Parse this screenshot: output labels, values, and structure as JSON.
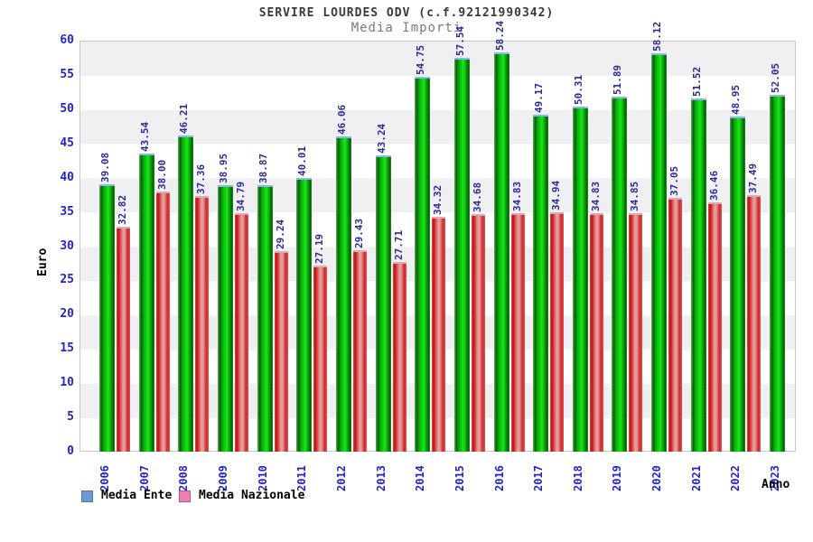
{
  "title": "SERVIRE LOURDES ODV (c.f.92121990342)",
  "subtitle": "Media Importi",
  "chart_data": {
    "type": "bar",
    "categories": [
      "2006",
      "2007",
      "2008",
      "2009",
      "2010",
      "2011",
      "2012",
      "2013",
      "2014",
      "2015",
      "2016",
      "2017",
      "2018",
      "2019",
      "2020",
      "2021",
      "2022",
      "2023"
    ],
    "series": [
      {
        "name": "Media Ente",
        "legend_color": "#6b9bd2",
        "bar_color": "green gradient cylinder with light-blue cap",
        "values": [
          39.08,
          43.54,
          46.21,
          38.95,
          38.87,
          40.01,
          46.06,
          43.24,
          54.75,
          57.54,
          58.24,
          49.17,
          50.31,
          51.89,
          58.12,
          51.52,
          48.95,
          52.05
        ]
      },
      {
        "name": "Media Nazionale",
        "legend_color": "#ee7fae",
        "bar_color": "red-pink gradient cylinder with pink cap",
        "values": [
          32.82,
          38.0,
          37.36,
          34.79,
          29.24,
          27.19,
          29.43,
          27.71,
          34.32,
          34.68,
          34.83,
          34.94,
          34.83,
          34.85,
          37.05,
          36.46,
          37.49,
          null
        ]
      }
    ],
    "xlabel": "Anno",
    "ylabel": "Euro",
    "ylim": [
      0,
      60
    ],
    "ytick_step": 5,
    "yticks": [
      0,
      5,
      10,
      15,
      20,
      25,
      30,
      35,
      40,
      45,
      50,
      55,
      60
    ],
    "grid": "alternating horizontal bands every 5 units (gray/white)",
    "legend_position": "bottom-left",
    "value_label_color": "#2a2a9a",
    "tick_label_color": "#2323cd"
  }
}
